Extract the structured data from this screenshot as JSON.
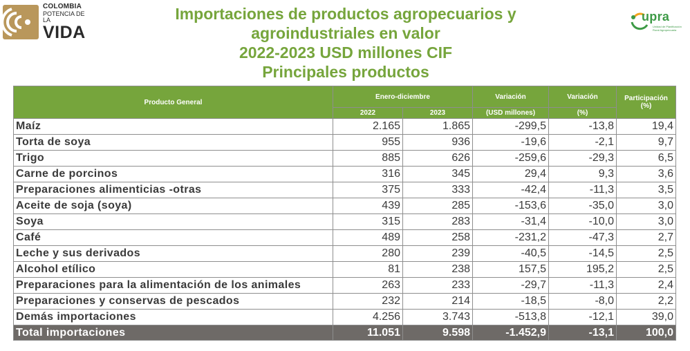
{
  "brand_left": {
    "line1": "COLOMBIA",
    "line2": "POTENCIA DE LA",
    "line3": "VIDA"
  },
  "brand_right": {
    "name": "upra",
    "subtitle": "Unidad de Planificación Rural Agropecuaria"
  },
  "title_lines": [
    "Importaciones de productos agropecuarios y",
    "agroindustriales en valor",
    "2022-2023 USD millones CIF",
    "Principales productos"
  ],
  "colors": {
    "title_green": "#76a53c",
    "header_green": "#76a53c",
    "total_gray": "#6e6a67"
  },
  "table": {
    "headers": {
      "product": "Producto General",
      "period": "Enero-diciembre",
      "year_a": "2022",
      "year_b": "2023",
      "var_usd_top": "Variación",
      "var_usd_bottom": "(USD millones)",
      "var_pct_top": "Variación",
      "var_pct_bottom": "(%)",
      "share_top": "Participación",
      "share_bottom": "(%)"
    },
    "rows": [
      {
        "name": "Maíz",
        "y2022": "2.165",
        "y2023": "1.865",
        "var_usd": "-299,5",
        "var_pct": "-13,8",
        "share": "19,4"
      },
      {
        "name": "Torta de soya",
        "y2022": "955",
        "y2023": "936",
        "var_usd": "-19,6",
        "var_pct": "-2,1",
        "share": "9,7"
      },
      {
        "name": "Trigo",
        "y2022": "885",
        "y2023": "626",
        "var_usd": "-259,6",
        "var_pct": "-29,3",
        "share": "6,5"
      },
      {
        "name": "Carne de porcinos",
        "y2022": "316",
        "y2023": "345",
        "var_usd": "29,4",
        "var_pct": "9,3",
        "share": "3,6"
      },
      {
        "name": "Preparaciones alimenticias -otras",
        "y2022": "375",
        "y2023": "333",
        "var_usd": "-42,4",
        "var_pct": "-11,3",
        "share": "3,5"
      },
      {
        "name": "Aceite de soja (soya)",
        "y2022": "439",
        "y2023": "285",
        "var_usd": "-153,6",
        "var_pct": "-35,0",
        "share": "3,0"
      },
      {
        "name": "Soya",
        "y2022": "315",
        "y2023": "283",
        "var_usd": "-31,4",
        "var_pct": "-10,0",
        "share": "3,0"
      },
      {
        "name": "Café",
        "y2022": "489",
        "y2023": "258",
        "var_usd": "-231,2",
        "var_pct": "-47,3",
        "share": "2,7"
      },
      {
        "name": "Leche y sus derivados",
        "y2022": "280",
        "y2023": "239",
        "var_usd": "-40,5",
        "var_pct": "-14,5",
        "share": "2,5"
      },
      {
        "name": "Alcohol etílico",
        "y2022": "81",
        "y2023": "238",
        "var_usd": "157,5",
        "var_pct": "195,2",
        "share": "2,5"
      },
      {
        "name": "Preparaciones para la alimentación de los animales",
        "y2022": "263",
        "y2023": "233",
        "var_usd": "-29,7",
        "var_pct": "-11,3",
        "share": "2,4"
      },
      {
        "name": "Preparaciones y conservas de pescados",
        "y2022": "232",
        "y2023": "214",
        "var_usd": "-18,5",
        "var_pct": "-8,0",
        "share": "2,2"
      },
      {
        "name": "Demás importaciones",
        "y2022": "4.256",
        "y2023": "3.743",
        "var_usd": "-513,8",
        "var_pct": "-12,1",
        "share": "39,0"
      }
    ],
    "total": {
      "name": "Total importaciones",
      "y2022": "11.051",
      "y2023": "9.598",
      "var_usd": "-1.452,9",
      "var_pct": "-13,1",
      "share": "100,0"
    }
  }
}
